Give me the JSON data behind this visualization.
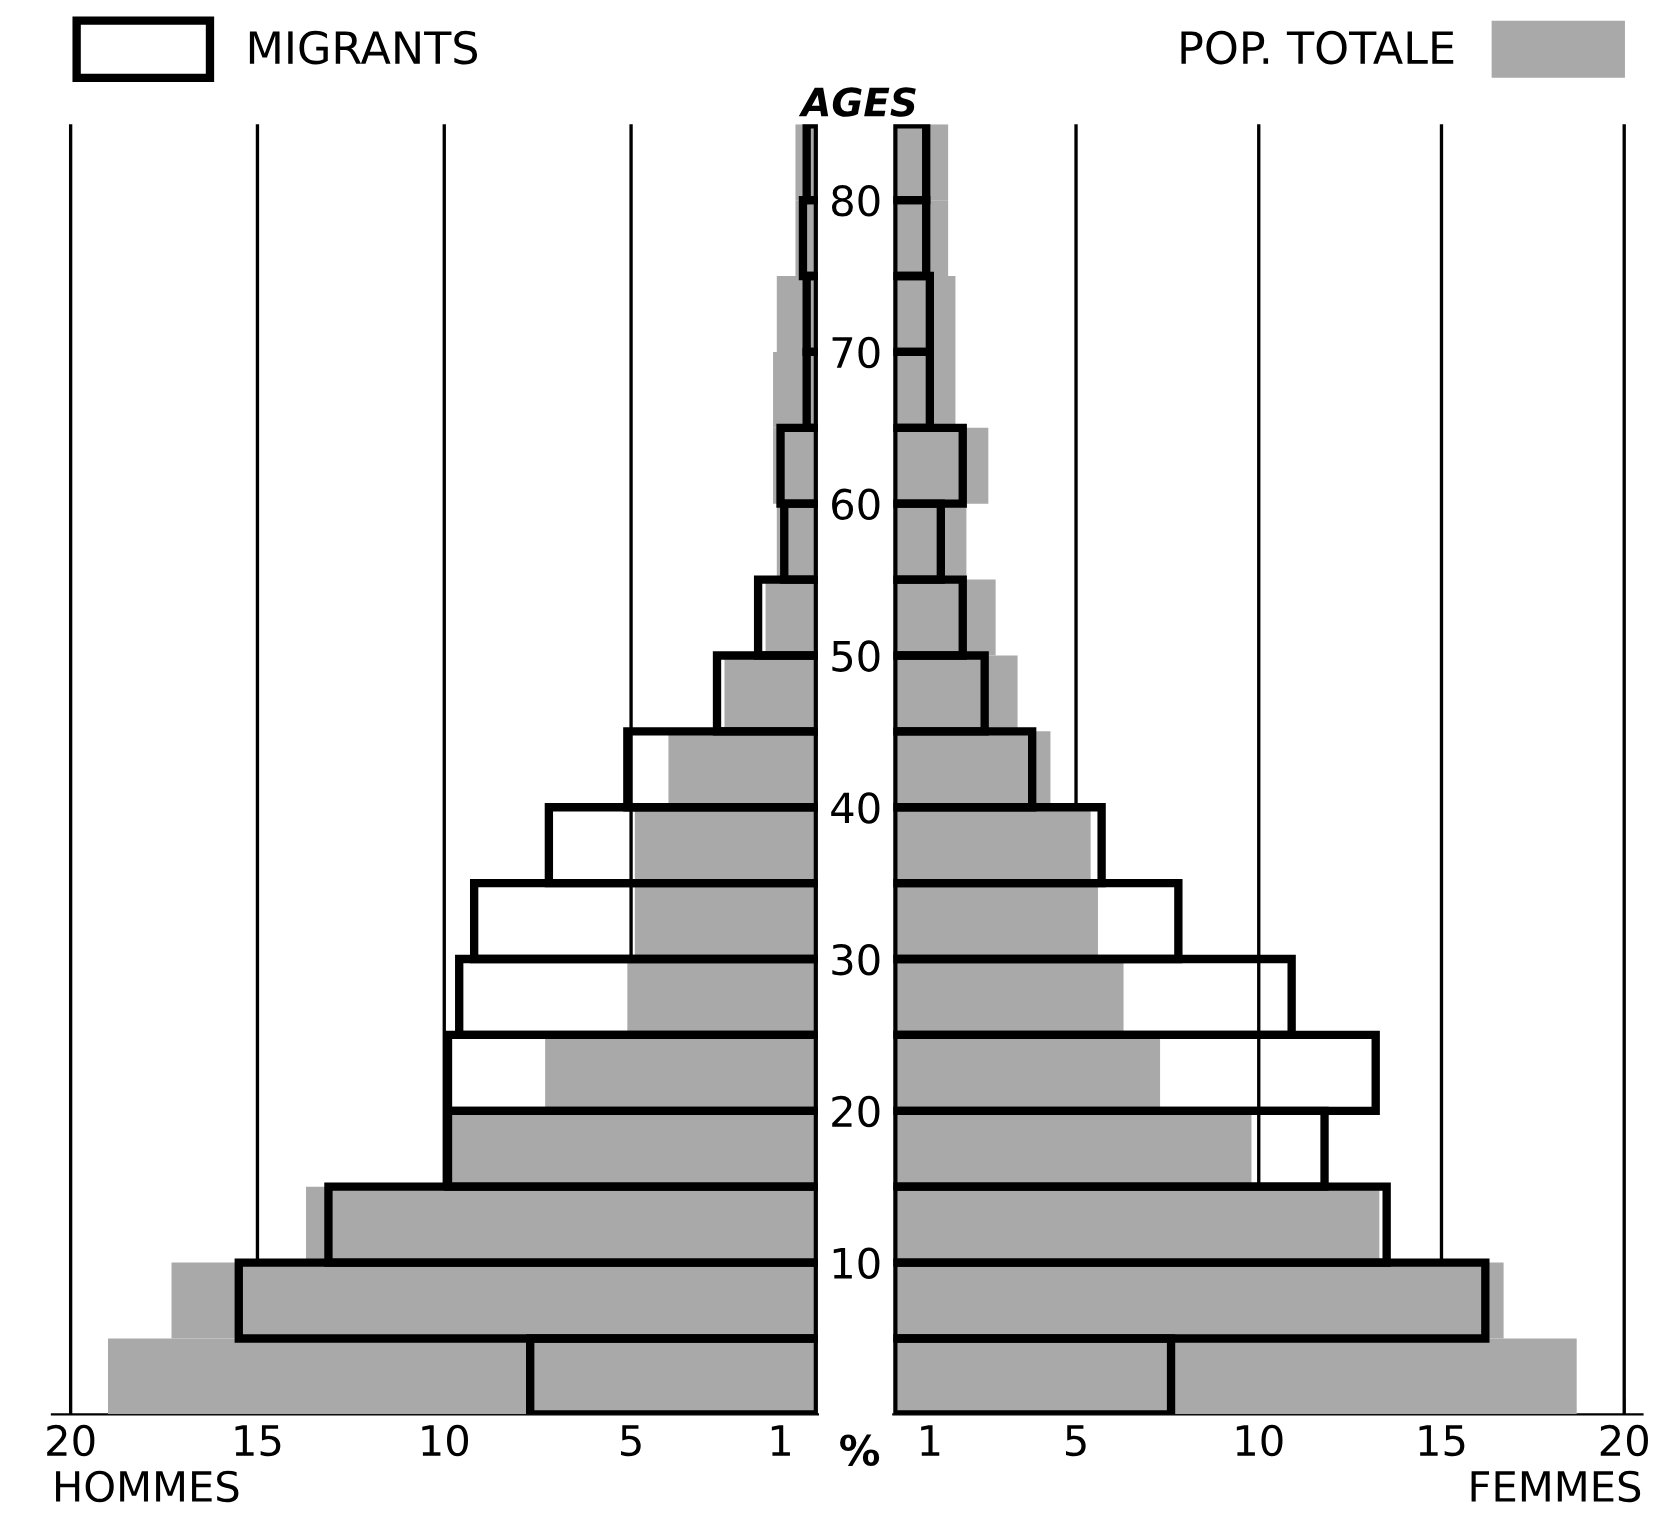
{
  "chart_data": [
    {
      "type": "bar",
      "orientation": "horizontal",
      "xlabel": "HOMMES",
      "x": [
        2.5,
        7.5,
        12.5,
        17.5,
        22.5,
        27.5,
        32.5,
        37.5,
        42.5,
        47.5,
        52.5,
        57.5,
        62.5,
        67.5,
        72.5,
        77.5,
        82.5
      ],
      "xlim": [
        20.5,
        0
      ],
      "xticks": [
        20,
        15,
        10,
        5,
        1
      ],
      "ylim": [
        0,
        85
      ],
      "yticks": [
        10,
        20,
        30,
        40,
        50,
        60,
        70,
        80
      ],
      "tick_labels": "x",
      "legend": "top left",
      "grid": false,
      "ref_lines": [
        {
          "axis": "x",
          "value": 20,
          "color": "#000000"
        },
        {
          "axis": "x",
          "value": 15,
          "color": "#000000"
        },
        {
          "axis": "x",
          "value": 10,
          "color": "#000000"
        },
        {
          "axis": "x",
          "value": 5,
          "color": "#000000"
        }
      ],
      "series": [
        {
          "color": "#a9a9a9",
          "values": [
            19.0,
            17.3,
            13.7,
            9.8,
            7.3,
            5.1,
            4.9,
            4.9,
            4.0,
            2.5,
            1.4,
            1.1,
            1.2,
            1.2,
            1.1,
            0.6,
            0.6
          ]
        },
        {
          "name": "MIGRANTS",
          "color": "#000000",
          "values": [
            7.7,
            15.5,
            13.1,
            9.9,
            9.9,
            9.6,
            9.2,
            7.2,
            5.1,
            2.7,
            1.6,
            0.9,
            1.0,
            0.3,
            0.3,
            0.4,
            0.3
          ]
        }
      ]
    },
    {
      "type": "bar",
      "orientation": "horizontal",
      "xlabel": "FEMMES",
      "ylabel": "AGES",
      "annotations": [
        "%"
      ],
      "x": [
        2.5,
        7.5,
        12.5,
        17.5,
        22.5,
        27.5,
        32.5,
        37.5,
        42.5,
        47.5,
        52.5,
        57.5,
        62.5,
        67.5,
        72.5,
        77.5,
        82.5
      ],
      "xlim": [
        0,
        20.5
      ],
      "xticks": [
        1,
        5,
        10,
        15,
        20
      ],
      "ylim": [
        0,
        85
      ],
      "yticks": [
        10,
        20,
        30,
        40,
        50,
        60,
        70,
        80
      ],
      "legend": "top right",
      "grid": false,
      "ref_lines": [
        {
          "axis": "x",
          "value": 5,
          "color": "#000000"
        },
        {
          "axis": "x",
          "value": 10,
          "color": "#000000"
        },
        {
          "axis": "x",
          "value": 15,
          "color": "#000000"
        },
        {
          "axis": "x",
          "value": 20,
          "color": "#000000"
        }
      ],
      "series": [
        {
          "name": "POP. TOTALE",
          "color": "#a9a9a9",
          "values": [
            18.7,
            16.7,
            13.3,
            9.8,
            7.3,
            6.3,
            5.6,
            5.4,
            4.3,
            3.4,
            2.8,
            2.0,
            2.6,
            1.7,
            1.7,
            1.5,
            1.5
          ]
        },
        {
          "color": "#000000",
          "values": [
            7.6,
            16.2,
            13.5,
            11.8,
            13.2,
            10.9,
            7.8,
            5.7,
            3.8,
            2.5,
            1.9,
            1.3,
            1.9,
            1.0,
            1.0,
            0.9,
            0.9
          ]
        }
      ]
    }
  ]
}
